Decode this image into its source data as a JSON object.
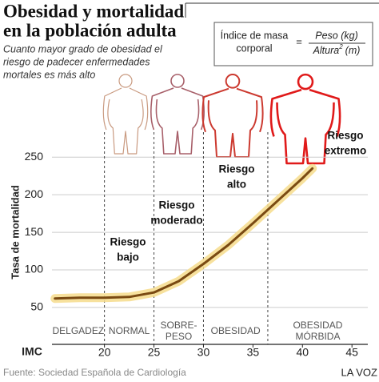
{
  "chart_data": {
    "type": "line",
    "title": [
      "Obesidad  y mortalidad",
      "en la población adulta"
    ],
    "subtitle": [
      "Cuanto mayor grado de obesidad el",
      "riesgo de padecer enfermedades",
      "mortales es más alto"
    ],
    "formula": {
      "label": [
        "Índice de masa",
        "corporal"
      ],
      "equals": "=",
      "numerator": "Peso (kg)",
      "denominator": [
        "Altura",
        "2",
        "(m)"
      ]
    },
    "xlabel": "IMC",
    "ylabel": "Tasa de mortalidad",
    "x": [
      15,
      17.5,
      20,
      22.5,
      25,
      27.5,
      30,
      32.5,
      35,
      37.5,
      40,
      41
    ],
    "series": [
      {
        "name": "Tasa de mortalidad",
        "color": "#7a4a12",
        "values": [
          62,
          63,
          63,
          64,
          70,
          85,
          108,
          133,
          162,
          192,
          222,
          235
        ]
      }
    ],
    "xlim": [
      14.7,
      46.6
    ],
    "ylim": [
      35,
      262
    ],
    "xticks": [
      20,
      25,
      30,
      35,
      40,
      45
    ],
    "yticks": [
      50,
      100,
      150,
      200,
      250
    ],
    "grid": true,
    "band_edges": [
      20,
      25,
      30,
      36.5
    ],
    "bands": [
      [
        "DELGADEZ"
      ],
      [
        "NORMAL"
      ],
      [
        "SOBRE-",
        "PESO"
      ],
      [
        "OBESIDAD"
      ],
      [
        "OBESIDAD",
        "MÓRBIDA"
      ]
    ],
    "annotations": [
      [
        "Riesgo",
        "bajo"
      ],
      [
        "Riesgo",
        "moderado"
      ],
      [
        "Riesgo",
        "alto"
      ],
      [
        "Riesgo",
        "extremo"
      ]
    ],
    "source": "Fuente: Sociedad Española de Cardiología",
    "brand": "LA VOZ"
  }
}
